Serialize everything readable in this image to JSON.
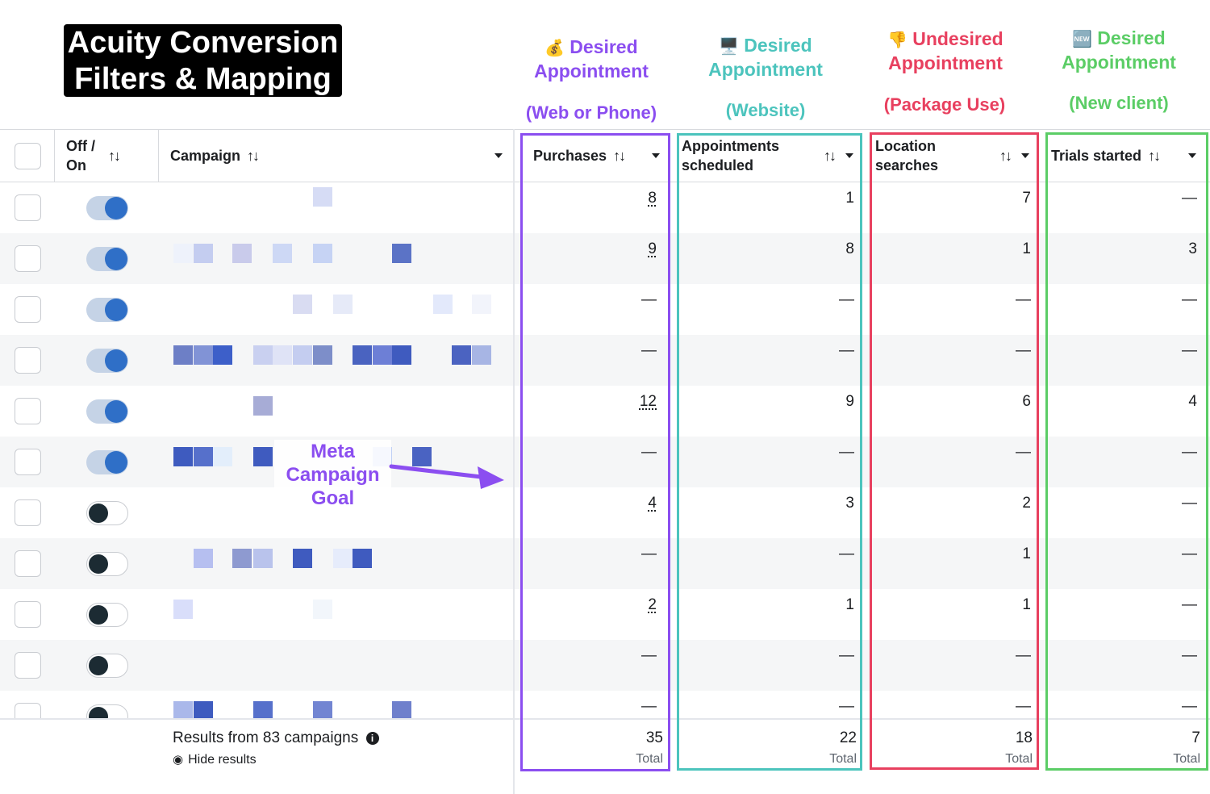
{
  "title": {
    "line1": "Acuity Conversion",
    "line2": "Filters & Mapping"
  },
  "labels": [
    {
      "emoji": "💰",
      "line1": "Desired",
      "line2": "Appointment",
      "sub": "(Web or Phone)",
      "color": "#8b4ef0"
    },
    {
      "emoji": "🖥️",
      "line1": "Desired",
      "line2": "Appointment",
      "sub": "(Website)",
      "color": "#4cc4bd"
    },
    {
      "emoji": "👎",
      "line1": "Undesired",
      "line2": "Appointment",
      "sub": "(Package Use)",
      "color": "#e8405f"
    },
    {
      "emoji": "🆕",
      "line1": "Desired",
      "line2": "Appointment",
      "sub": "(New client)",
      "color": "#5bcd66"
    }
  ],
  "table": {
    "headers": {
      "offon_line1": "Off /",
      "offon_line2": "On",
      "campaign": "Campaign",
      "purchases": "Purchases",
      "appointments_line1": "Appointments",
      "appointments_line2": "scheduled",
      "location_line1": "Location",
      "location_line2": "searches",
      "trials": "Trials started",
      "sort_icon": "↑↓"
    },
    "rows": [
      {
        "on": true,
        "purchases": "8",
        "appointments": "1",
        "location": "7",
        "trials": "—"
      },
      {
        "on": true,
        "purchases": "9",
        "appointments": "8",
        "location": "1",
        "trials": "3"
      },
      {
        "on": true,
        "purchases": "—",
        "appointments": "—",
        "location": "—",
        "trials": "—"
      },
      {
        "on": true,
        "purchases": "—",
        "appointments": "—",
        "location": "—",
        "trials": "—"
      },
      {
        "on": true,
        "purchases": "12",
        "appointments": "9",
        "location": "6",
        "trials": "4"
      },
      {
        "on": true,
        "purchases": "—",
        "appointments": "—",
        "location": "—",
        "trials": "—"
      },
      {
        "on": false,
        "purchases": "4",
        "appointments": "3",
        "location": "2",
        "trials": "—"
      },
      {
        "on": false,
        "purchases": "—",
        "appointments": "—",
        "location": "1",
        "trials": "—"
      },
      {
        "on": false,
        "purchases": "2",
        "appointments": "1",
        "location": "1",
        "trials": "—"
      },
      {
        "on": false,
        "purchases": "—",
        "appointments": "—",
        "location": "—",
        "trials": "—"
      },
      {
        "on": false,
        "purchases": "—",
        "appointments": "—",
        "location": "—",
        "trials": "—"
      }
    ],
    "footer": {
      "results": "Results from 83 campaigns",
      "hide": "Hide results",
      "totals": {
        "purchases": "35",
        "appointments": "22",
        "location": "18",
        "trials": "7"
      },
      "total_label": "Total"
    }
  },
  "annotation": {
    "line1": "Meta",
    "line2": "Campaign",
    "line3": "Goal",
    "color": "#8b4ef0"
  },
  "colors": {
    "purple": "#8b4ef0",
    "teal": "#4cc4bd",
    "red": "#e8405f",
    "green": "#5bcd66",
    "toggle_on": "#2f6fc7"
  }
}
